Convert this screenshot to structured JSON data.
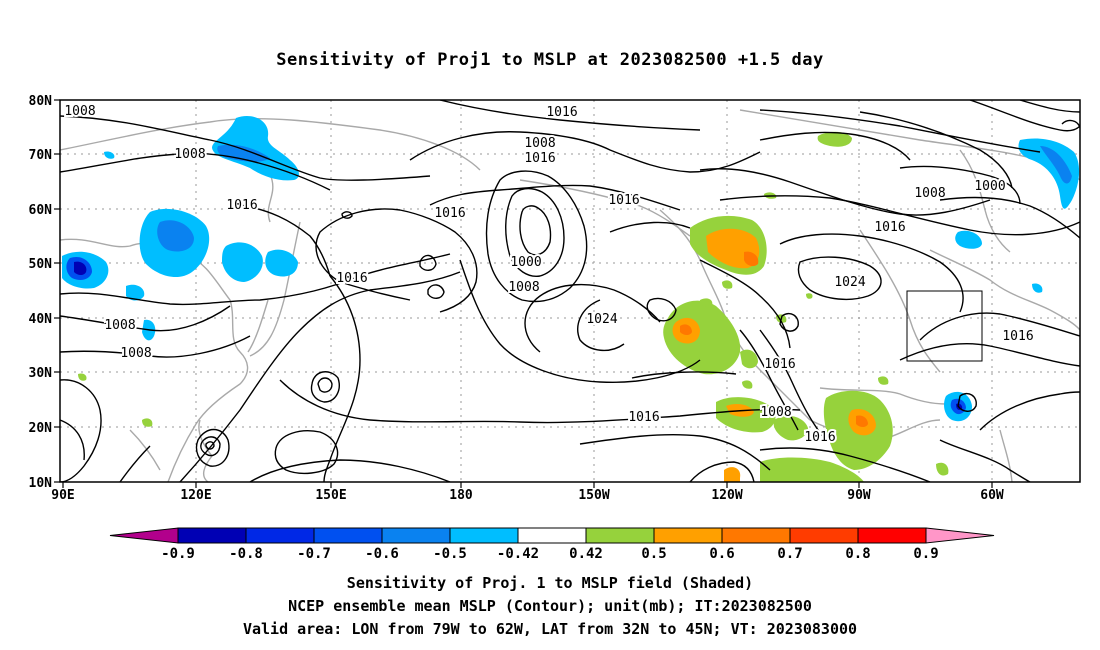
{
  "title": "Sensitivity of Proj1 to MSLP at 2023082500 +1.5 day",
  "lat_labels": [
    "80N",
    "70N",
    "60N",
    "50N",
    "40N",
    "30N",
    "20N",
    "10N"
  ],
  "lon_labels": [
    "90E",
    "120E",
    "150E",
    "180",
    "150W",
    "120W",
    "90W",
    "60W"
  ],
  "contour_labels": [
    {
      "text": "1008"
    },
    {
      "text": "1008"
    },
    {
      "text": "1016"
    },
    {
      "text": "1016"
    },
    {
      "text": "1016"
    },
    {
      "text": "1016"
    },
    {
      "text": "1008"
    },
    {
      "text": "1016"
    },
    {
      "text": "1016"
    },
    {
      "text": "1000"
    },
    {
      "text": "1008"
    },
    {
      "text": "1024"
    },
    {
      "text": "1008"
    },
    {
      "text": "1000"
    },
    {
      "text": "1016"
    },
    {
      "text": "1024"
    },
    {
      "text": "1008"
    },
    {
      "text": "1008"
    },
    {
      "text": "1016"
    },
    {
      "text": "1008"
    },
    {
      "text": "1016"
    },
    {
      "text": "1016"
    },
    {
      "text": "1016"
    }
  ],
  "colorbar": {
    "colors": [
      "#b2008c",
      "#0000b4",
      "#0028e6",
      "#0050f0",
      "#0a82f0",
      "#00beff",
      "#ffffff",
      "#96d23c",
      "#ffa000",
      "#ff7800",
      "#ff3c00",
      "#ff0000",
      "#ff96c8"
    ],
    "labels": [
      "-0.9",
      "-0.8",
      "-0.7",
      "-0.6",
      "-0.5",
      "-0.42",
      "0.42",
      "0.5",
      "0.6",
      "0.7",
      "0.8",
      "0.9"
    ]
  },
  "captions": [
    "Sensitivity of Proj. 1 to MSLP field (Shaded)",
    "NCEP ensemble mean MSLP (Contour); unit(mb); IT:2023082500",
    "Valid area: LON from 79W to 62W, LAT from 32N to 45N; VT: 2023083000"
  ]
}
